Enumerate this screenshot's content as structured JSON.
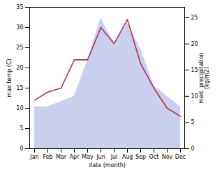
{
  "chart_data": {
    "type": "line",
    "xlabel": "date (month)",
    "ylabel": "max temp (C)",
    "y2label": "med. precipitation\n(kg/m2)",
    "categories": [
      "Jan",
      "Feb",
      "Mar",
      "Apr",
      "May",
      "Jun",
      "Jul",
      "Aug",
      "Sep",
      "Oct",
      "Nov",
      "Dec"
    ],
    "series": [
      {
        "type": "area",
        "axis": "y2",
        "color": "#b8bfe8",
        "values": [
          8,
          8,
          9,
          10,
          17,
          25,
          20,
          24,
          19,
          12,
          10,
          8
        ]
      },
      {
        "type": "line",
        "color": "#b03555",
        "values": [
          12,
          14,
          15,
          22,
          22,
          30,
          26,
          32,
          21,
          15,
          10,
          8
        ]
      }
    ],
    "ylim": [
      0,
      35
    ],
    "yticks": [
      0,
      5,
      10,
      15,
      20,
      25,
      30,
      35
    ],
    "y2lim": [
      0,
      27.0
    ],
    "y2ticks": [
      0,
      5,
      10,
      15,
      20,
      25
    ]
  }
}
